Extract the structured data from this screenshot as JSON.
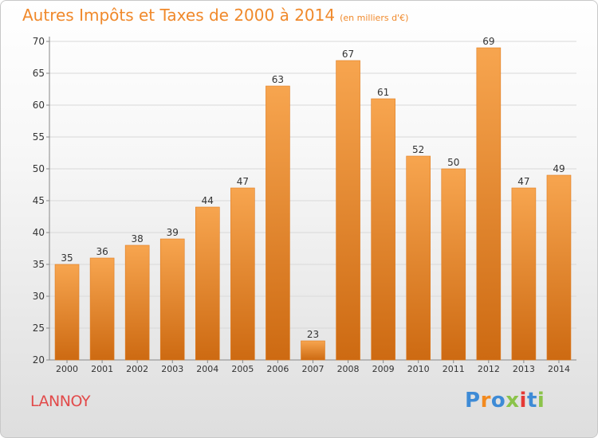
{
  "header": {
    "title": "Autres Impôts et Taxes de 2000 à 2014",
    "subtitle": "(en milliers d'€)"
  },
  "footer": {
    "place": "LANNOY",
    "logo_text": "Proxiti"
  },
  "colors": {
    "bar_light": "#f7a54f",
    "bar_dark": "#cd6a12",
    "title": "#f0892b",
    "place": "#e24a4a",
    "logo": [
      "#3e8bd6",
      "#f28a1f",
      "#3e8bd6",
      "#8bc34a",
      "#e53935",
      "#3e8bd6",
      "#8bc34a"
    ]
  },
  "chart_data": {
    "type": "bar",
    "title": "Autres Impôts et Taxes de 2000 à 2014",
    "subtitle": "(en milliers d'€)",
    "categories": [
      "2000",
      "2001",
      "2002",
      "2003",
      "2004",
      "2005",
      "2006",
      "2007",
      "2008",
      "2009",
      "2010",
      "2011",
      "2012",
      "2013",
      "2014"
    ],
    "values": [
      35,
      36,
      38,
      39,
      44,
      47,
      63,
      23,
      67,
      61,
      52,
      50,
      69,
      47,
      49
    ],
    "ylim": [
      20,
      70
    ],
    "yticks": [
      20,
      25,
      30,
      35,
      40,
      45,
      50,
      55,
      60,
      65,
      70
    ],
    "grid": true,
    "legend": "none"
  }
}
